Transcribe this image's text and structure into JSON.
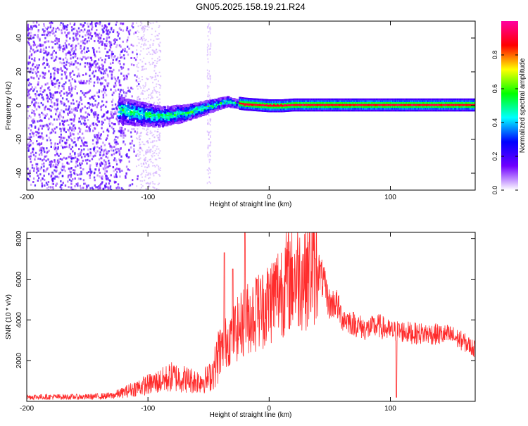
{
  "title": "GN05.2025.158.19.21.R24",
  "chart_data": [
    {
      "type": "heatmap",
      "xlabel": "Height of straight line (km)",
      "ylabel": "Frequency (Hz)",
      "xlim": [
        -200,
        170
      ],
      "ylim": [
        -50,
        50
      ],
      "xticks": [
        -200,
        -100,
        0,
        100
      ],
      "yticks": [
        -40,
        -20,
        0,
        20,
        40
      ],
      "grid": false,
      "colorbar": {
        "label": "Normalized spectral amplitude",
        "range": [
          0,
          1
        ],
        "ticks": [
          0.0,
          0.2,
          0.4,
          0.6,
          0.8
        ],
        "colors": [
          "#ffffff",
          "#7000ff",
          "#0000ff",
          "#00ffff",
          "#00ff00",
          "#ffff00",
          "#ff0000",
          "#ff00a0"
        ]
      },
      "ridge": {
        "x": [
          -125,
          -110,
          -100,
          -90,
          -80,
          -70,
          -60,
          -50,
          -40,
          -35,
          -30,
          -20,
          -10,
          0,
          10,
          20,
          50,
          100,
          170
        ],
        "y": [
          -2,
          -4,
          -5,
          -6,
          -5,
          -4,
          -2,
          0,
          2,
          3,
          2,
          1,
          0.5,
          0,
          0,
          0.5,
          0.5,
          0.5,
          0.5
        ]
      }
    },
    {
      "type": "line",
      "xlabel": "Height of straight line (km)",
      "ylabel": "SNR (10 * v/v)",
      "xlim": [
        -200,
        170
      ],
      "ylim": [
        0,
        8300
      ],
      "xticks": [
        -200,
        -100,
        0,
        100
      ],
      "yticks": [
        2000,
        4000,
        6000,
        8000
      ],
      "grid": false,
      "series_color": "#ff2b2b",
      "envelope": {
        "x": [
          -200,
          -150,
          -130,
          -120,
          -110,
          -100,
          -90,
          -80,
          -70,
          -60,
          -50,
          -45,
          -40,
          -35,
          -30,
          -25,
          -20,
          -15,
          -10,
          -5,
          0,
          5,
          10,
          15,
          20,
          25,
          30,
          35,
          40,
          45,
          50,
          55,
          60,
          70,
          80,
          90,
          100,
          110,
          120,
          130,
          140,
          150,
          160,
          170
        ],
        "y": [
          200,
          200,
          250,
          400,
          600,
          750,
          900,
          1100,
          1000,
          900,
          1000,
          1500,
          2400,
          3000,
          3300,
          3600,
          4000,
          4200,
          4400,
          4600,
          4900,
          5300,
          5600,
          5900,
          6100,
          6200,
          6300,
          6500,
          6700,
          5900,
          4800,
          5000,
          4200,
          3900,
          3600,
          3800,
          3500,
          3500,
          3400,
          3400,
          3350,
          3300,
          3000,
          2600
        ]
      },
      "spikes": [
        {
          "x": -37,
          "y": 7300
        },
        {
          "x": -30,
          "y": 6500
        },
        {
          "x": -20,
          "y": 8300
        },
        {
          "x": -10,
          "y": 6000
        },
        {
          "x": 38,
          "y": 7000
        },
        {
          "x": 105,
          "y": 200
        }
      ]
    }
  ]
}
